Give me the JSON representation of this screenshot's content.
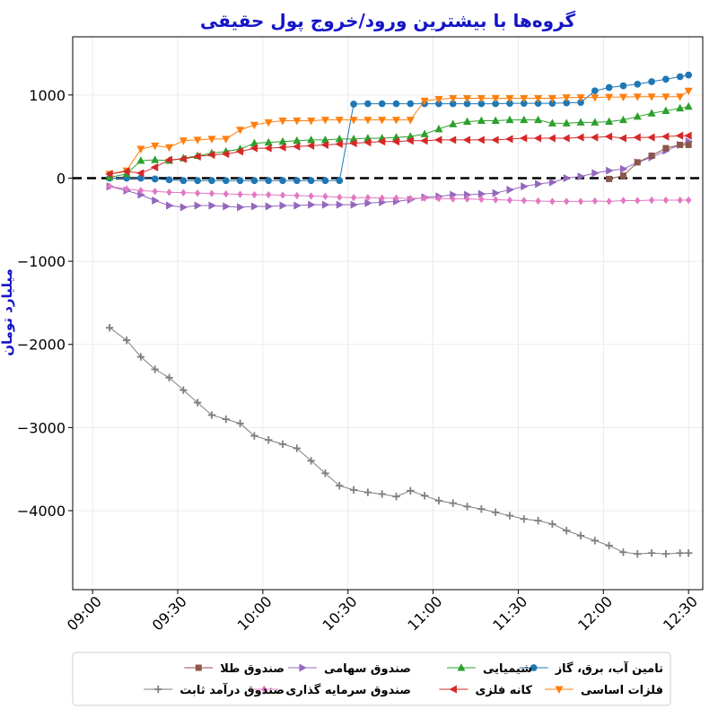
{
  "chart_data": {
    "type": "line",
    "title": "گروه‌ها با بیشترین ورود/خروج پول حقیقی",
    "ylabel": "میلیارد تومان",
    "xlabel": "",
    "ylim": [
      -4950,
      1700
    ],
    "xlim": [
      "08:53",
      "12:35"
    ],
    "yticks": [
      1000,
      0,
      -1000,
      -2000,
      -3000,
      -4000
    ],
    "ytick_labels": [
      "1000",
      "0",
      "−1000",
      "−2000",
      "−3000",
      "−4000"
    ],
    "xticks": [
      "09:00",
      "09:30",
      "10:00",
      "10:30",
      "11:00",
      "11:30",
      "12:00",
      "12:30"
    ],
    "xtick_labels": [
      "09:00",
      "09:30",
      "10:00",
      "10:30",
      "11:00",
      "11:30",
      "12:00",
      "12:30"
    ],
    "grid": true,
    "zero_line": true,
    "legend_position": "bottom",
    "x_times": [
      "09:06",
      "09:12",
      "09:17",
      "09:22",
      "09:27",
      "09:32",
      "09:37",
      "09:42",
      "09:47",
      "09:52",
      "09:57",
      "10:02",
      "10:07",
      "10:12",
      "10:17",
      "10:22",
      "10:27",
      "10:32",
      "10:37",
      "10:42",
      "10:47",
      "10:52",
      "10:57",
      "11:02",
      "11:07",
      "11:12",
      "11:17",
      "11:22",
      "11:27",
      "11:32",
      "11:37",
      "11:42",
      "11:47",
      "11:52",
      "11:57",
      "12:02",
      "12:07",
      "12:12",
      "12:17",
      "12:22",
      "12:27",
      "12:30"
    ],
    "series": [
      {
        "name": "تامین آب، برق، گاز",
        "color": "#1f77b4",
        "marker": "circle",
        "values": [
          0,
          0,
          0,
          -10,
          -20,
          -30,
          -30,
          -30,
          -30,
          -30,
          -30,
          -30,
          -30,
          -30,
          -30,
          -30,
          -30,
          890,
          895,
          895,
          895,
          895,
          895,
          895,
          895,
          895,
          895,
          895,
          900,
          900,
          900,
          900,
          905,
          910,
          1050,
          1090,
          1110,
          1130,
          1160,
          1190,
          1220,
          1240
        ]
      },
      {
        "name": "فلزات اساسی",
        "color": "#ff7f0e",
        "marker": "triangle-down",
        "values": [
          50,
          90,
          350,
          390,
          370,
          450,
          460,
          470,
          470,
          580,
          640,
          670,
          690,
          690,
          690,
          700,
          700,
          700,
          700,
          700,
          700,
          700,
          930,
          950,
          960,
          960,
          960,
          960,
          960,
          960,
          960,
          960,
          970,
          970,
          970,
          975,
          975,
          980,
          980,
          980,
          980,
          1050
        ]
      },
      {
        "name": "شیمیایی",
        "color": "#2ca02c",
        "marker": "triangle-up",
        "values": [
          10,
          50,
          210,
          220,
          210,
          240,
          270,
          300,
          320,
          350,
          420,
          430,
          440,
          450,
          460,
          460,
          470,
          470,
          480,
          480,
          490,
          500,
          530,
          590,
          650,
          680,
          690,
          690,
          700,
          700,
          700,
          660,
          660,
          670,
          670,
          680,
          700,
          740,
          780,
          810,
          840,
          860
        ]
      },
      {
        "name": "کانه فلزی",
        "color": "#d62728",
        "marker": "triangle-left",
        "values": [
          50,
          80,
          60,
          130,
          220,
          230,
          260,
          280,
          290,
          320,
          360,
          360,
          370,
          380,
          390,
          400,
          410,
          420,
          430,
          440,
          440,
          450,
          450,
          460,
          460,
          460,
          460,
          460,
          470,
          480,
          480,
          480,
          480,
          490,
          490,
          500,
          480,
          490,
          490,
          500,
          510,
          510
        ]
      },
      {
        "name": "صندوق سهامی",
        "color": "#9467bd",
        "marker": "triangle-right",
        "values": [
          -100,
          -150,
          -200,
          -270,
          -330,
          -350,
          -330,
          -330,
          -340,
          -350,
          -340,
          -340,
          -330,
          -330,
          -320,
          -320,
          -320,
          -320,
          -300,
          -290,
          -280,
          -260,
          -230,
          -220,
          -200,
          -200,
          -190,
          -180,
          -140,
          -100,
          -70,
          -50,
          0,
          20,
          60,
          90,
          110,
          190,
          250,
          330,
          400,
          440
        ]
      },
      {
        "name": "صندوق سرمایه گذاری",
        "color": "#e377c2",
        "marker": "diamond",
        "values": [
          -100,
          -130,
          -150,
          -160,
          -170,
          -175,
          -180,
          -185,
          -190,
          -195,
          -200,
          -200,
          -205,
          -210,
          -215,
          -220,
          -230,
          -235,
          -235,
          -240,
          -240,
          -245,
          -240,
          -245,
          -250,
          -250,
          -255,
          -260,
          -265,
          -270,
          -275,
          -280,
          -280,
          -280,
          -275,
          -280,
          -270,
          -270,
          -265,
          -265,
          -265,
          -265
        ]
      },
      {
        "name": "صندوق طلا",
        "color": "#8c564b",
        "marker": "square",
        "start_index": 35,
        "values": [
          -10,
          30,
          190,
          270,
          360,
          400,
          400
        ]
      },
      {
        "name": "صندوق درآمد ثابت",
        "color": "#7f7f7f",
        "marker": "plus",
        "values": [
          -1800,
          -1950,
          -2150,
          -2300,
          -2400,
          -2550,
          -2700,
          -2850,
          -2900,
          -2950,
          -3100,
          -3150,
          -3200,
          -3250,
          -3400,
          -3550,
          -3700,
          -3750,
          -3780,
          -3800,
          -3830,
          -3760,
          -3820,
          -3880,
          -3910,
          -3950,
          -3980,
          -4020,
          -4060,
          -4100,
          -4120,
          -4160,
          -4240,
          -4300,
          -4360,
          -4420,
          -4500,
          -4520,
          -4510,
          -4520,
          -4510,
          -4510
        ]
      }
    ]
  }
}
